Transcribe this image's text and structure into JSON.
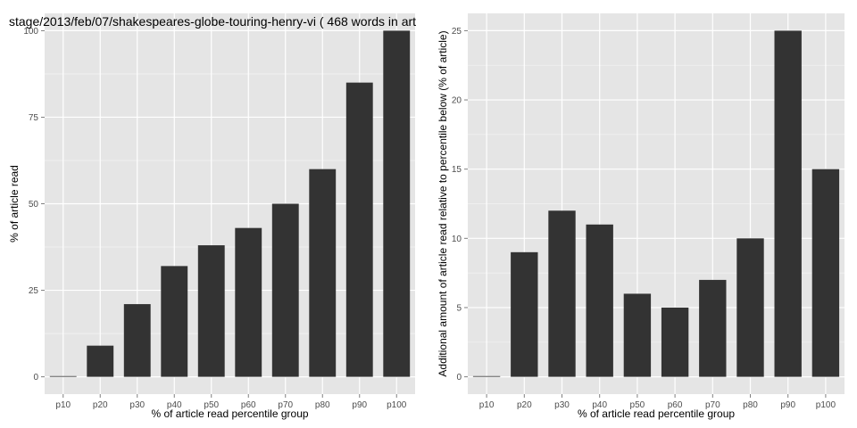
{
  "colors": {
    "panel_bg": "#e5e5e5",
    "grid_major": "#ffffff",
    "grid_minor": "#f2f2f2",
    "bar_fill": "#333333",
    "tick_text": "#4d4d4d"
  },
  "chart_data": [
    {
      "type": "bar",
      "title": "stage/2013/feb/07/shakespeares-globe-touring-henry-vi ( 468 words in art",
      "xlabel": "% of article read percentile group",
      "ylabel": "% of article read",
      "categories": [
        "p10",
        "p20",
        "p30",
        "p40",
        "p50",
        "p60",
        "p70",
        "p80",
        "p90",
        "p100"
      ],
      "values": [
        0,
        9,
        21,
        32,
        38,
        43,
        50,
        60,
        85,
        100
      ],
      "yticks": [
        0,
        25,
        50,
        75,
        100
      ],
      "ylim": [
        -5,
        105
      ],
      "grid": true
    },
    {
      "type": "bar",
      "title": "",
      "xlabel": "% of article read percentile group",
      "ylabel": "Additional amount of article read relative to percentile below (% of article)",
      "categories": [
        "p10",
        "p20",
        "p30",
        "p40",
        "p50",
        "p60",
        "p70",
        "p80",
        "p90",
        "p100"
      ],
      "values": [
        0,
        9,
        12,
        11,
        6,
        5,
        7,
        10,
        25,
        15
      ],
      "yticks": [
        0,
        5,
        10,
        15,
        20,
        25
      ],
      "ylim": [
        -1.25,
        26.25
      ],
      "grid": true
    }
  ]
}
